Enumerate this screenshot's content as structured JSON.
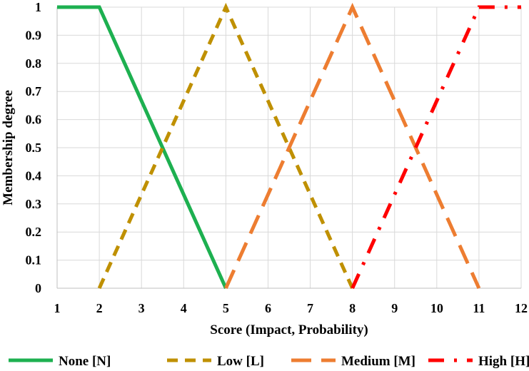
{
  "chart_data": {
    "type": "line",
    "title": "",
    "xlabel": "Score (Impact, Probability)",
    "ylabel": "Membership degree",
    "xlim": [
      1,
      12
    ],
    "ylim": [
      0,
      1
    ],
    "xticks": [
      "1",
      "2",
      "3",
      "4",
      "5",
      "6",
      "7",
      "8",
      "9",
      "10",
      "11",
      "12"
    ],
    "yticks": [
      "0",
      "0.1",
      "0.2",
      "0.3",
      "0.4",
      "0.5",
      "0.6",
      "0.7",
      "0.8",
      "0.9",
      "1"
    ],
    "grid": true,
    "legend_position": "bottom",
    "series": [
      {
        "name": "None [N]",
        "color": "#1db050",
        "style": "solid",
        "x": [
          1,
          2,
          5
        ],
        "y": [
          1,
          1,
          0
        ]
      },
      {
        "name": "Low [L]",
        "color": "#bf9000",
        "style": "dashed",
        "x": [
          2,
          5,
          8
        ],
        "y": [
          0,
          1,
          0
        ]
      },
      {
        "name": "Medium [M]",
        "color": "#ed7d31",
        "style": "long-dash",
        "x": [
          5,
          8,
          11
        ],
        "y": [
          0,
          1,
          0
        ]
      },
      {
        "name": "High [H]",
        "color": "#ff0000",
        "style": "dash-dot",
        "x": [
          8,
          11,
          12
        ],
        "y": [
          0,
          1,
          1
        ]
      }
    ]
  }
}
